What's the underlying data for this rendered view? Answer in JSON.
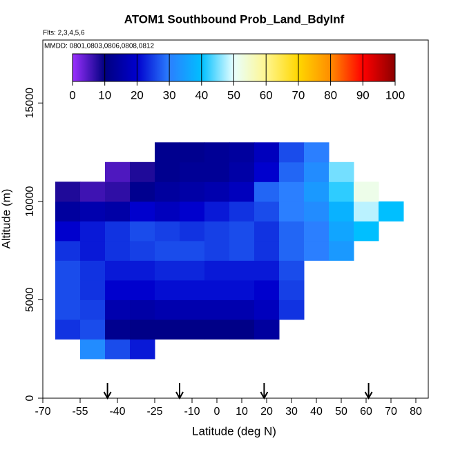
{
  "chart_data": {
    "type": "heatmap",
    "title": "ATOM1 Southbound Prob_Land_BdyInf",
    "subtitle": "Flts: 2,3,4,5,6",
    "annotation": "MMDD: 0801,0803,0806,0808,0812",
    "x_label": "Latitude (deg N)",
    "y_label": "Altitude (m)",
    "xlim": [
      -70,
      85
    ],
    "ylim": [
      0,
      18200
    ],
    "xticks": [
      -70,
      -55,
      -40,
      -25,
      -10,
      0,
      10,
      20,
      30,
      40,
      50,
      60,
      70,
      80
    ],
    "yticks": [
      0,
      5000,
      10000,
      15000
    ],
    "x_edges": [
      -65,
      -55,
      -45,
      -35,
      -25,
      -15,
      -5,
      5,
      15,
      25,
      35,
      45,
      55,
      65,
      75
    ],
    "y_edges": [
      2000,
      3000,
      4000,
      5000,
      6000,
      7000,
      8000,
      9000,
      10000,
      11000,
      12000,
      13000
    ],
    "values": [
      [
        null,
        32,
        26,
        22,
        null,
        null,
        null,
        null,
        null,
        null,
        null,
        null,
        null,
        null
      ],
      [
        24,
        26,
        12,
        11,
        11,
        11,
        11,
        11,
        14,
        null,
        null,
        null,
        null,
        null
      ],
      [
        26,
        25,
        16,
        15,
        16,
        16,
        16,
        16,
        18,
        24,
        null,
        null,
        null,
        null
      ],
      [
        26,
        24,
        20,
        20,
        21,
        21,
        21,
        21,
        20,
        25,
        null,
        null,
        null,
        null
      ],
      [
        26,
        24,
        22,
        22,
        23,
        23,
        22,
        22,
        22,
        26,
        null,
        null,
        null,
        null
      ],
      [
        24,
        22,
        24,
        25,
        26,
        26,
        25,
        26,
        24,
        28,
        30,
        34,
        null,
        null
      ],
      [
        20,
        22,
        24,
        26,
        25,
        24,
        25,
        26,
        24,
        28,
        30,
        36,
        40,
        null
      ],
      [
        14,
        16,
        15,
        20,
        18,
        20,
        22,
        24,
        26,
        30,
        32,
        38,
        48,
        40
      ],
      [
        8,
        6,
        7,
        12,
        14,
        15,
        16,
        18,
        28,
        30,
        34,
        42,
        52,
        null
      ],
      [
        null,
        null,
        5,
        8,
        12,
        13,
        13,
        15,
        20,
        28,
        32,
        45,
        null,
        null
      ],
      [
        null,
        null,
        null,
        null,
        12,
        12,
        13,
        14,
        18,
        26,
        30,
        null,
        null,
        null
      ]
    ],
    "flight_arrows_x": [
      -44,
      -15,
      19,
      61
    ],
    "colorbar": {
      "ticks": [
        0,
        10,
        20,
        30,
        40,
        50,
        60,
        70,
        80,
        90,
        100
      ],
      "colors": [
        "#9b30ff",
        "#00007f",
        "#0000cd",
        "#2b7fff",
        "#00bfff",
        "#e8ffff",
        "#fff68f",
        "#ffd700",
        "#ff8c00",
        "#ff0000",
        "#8b0000"
      ]
    }
  }
}
